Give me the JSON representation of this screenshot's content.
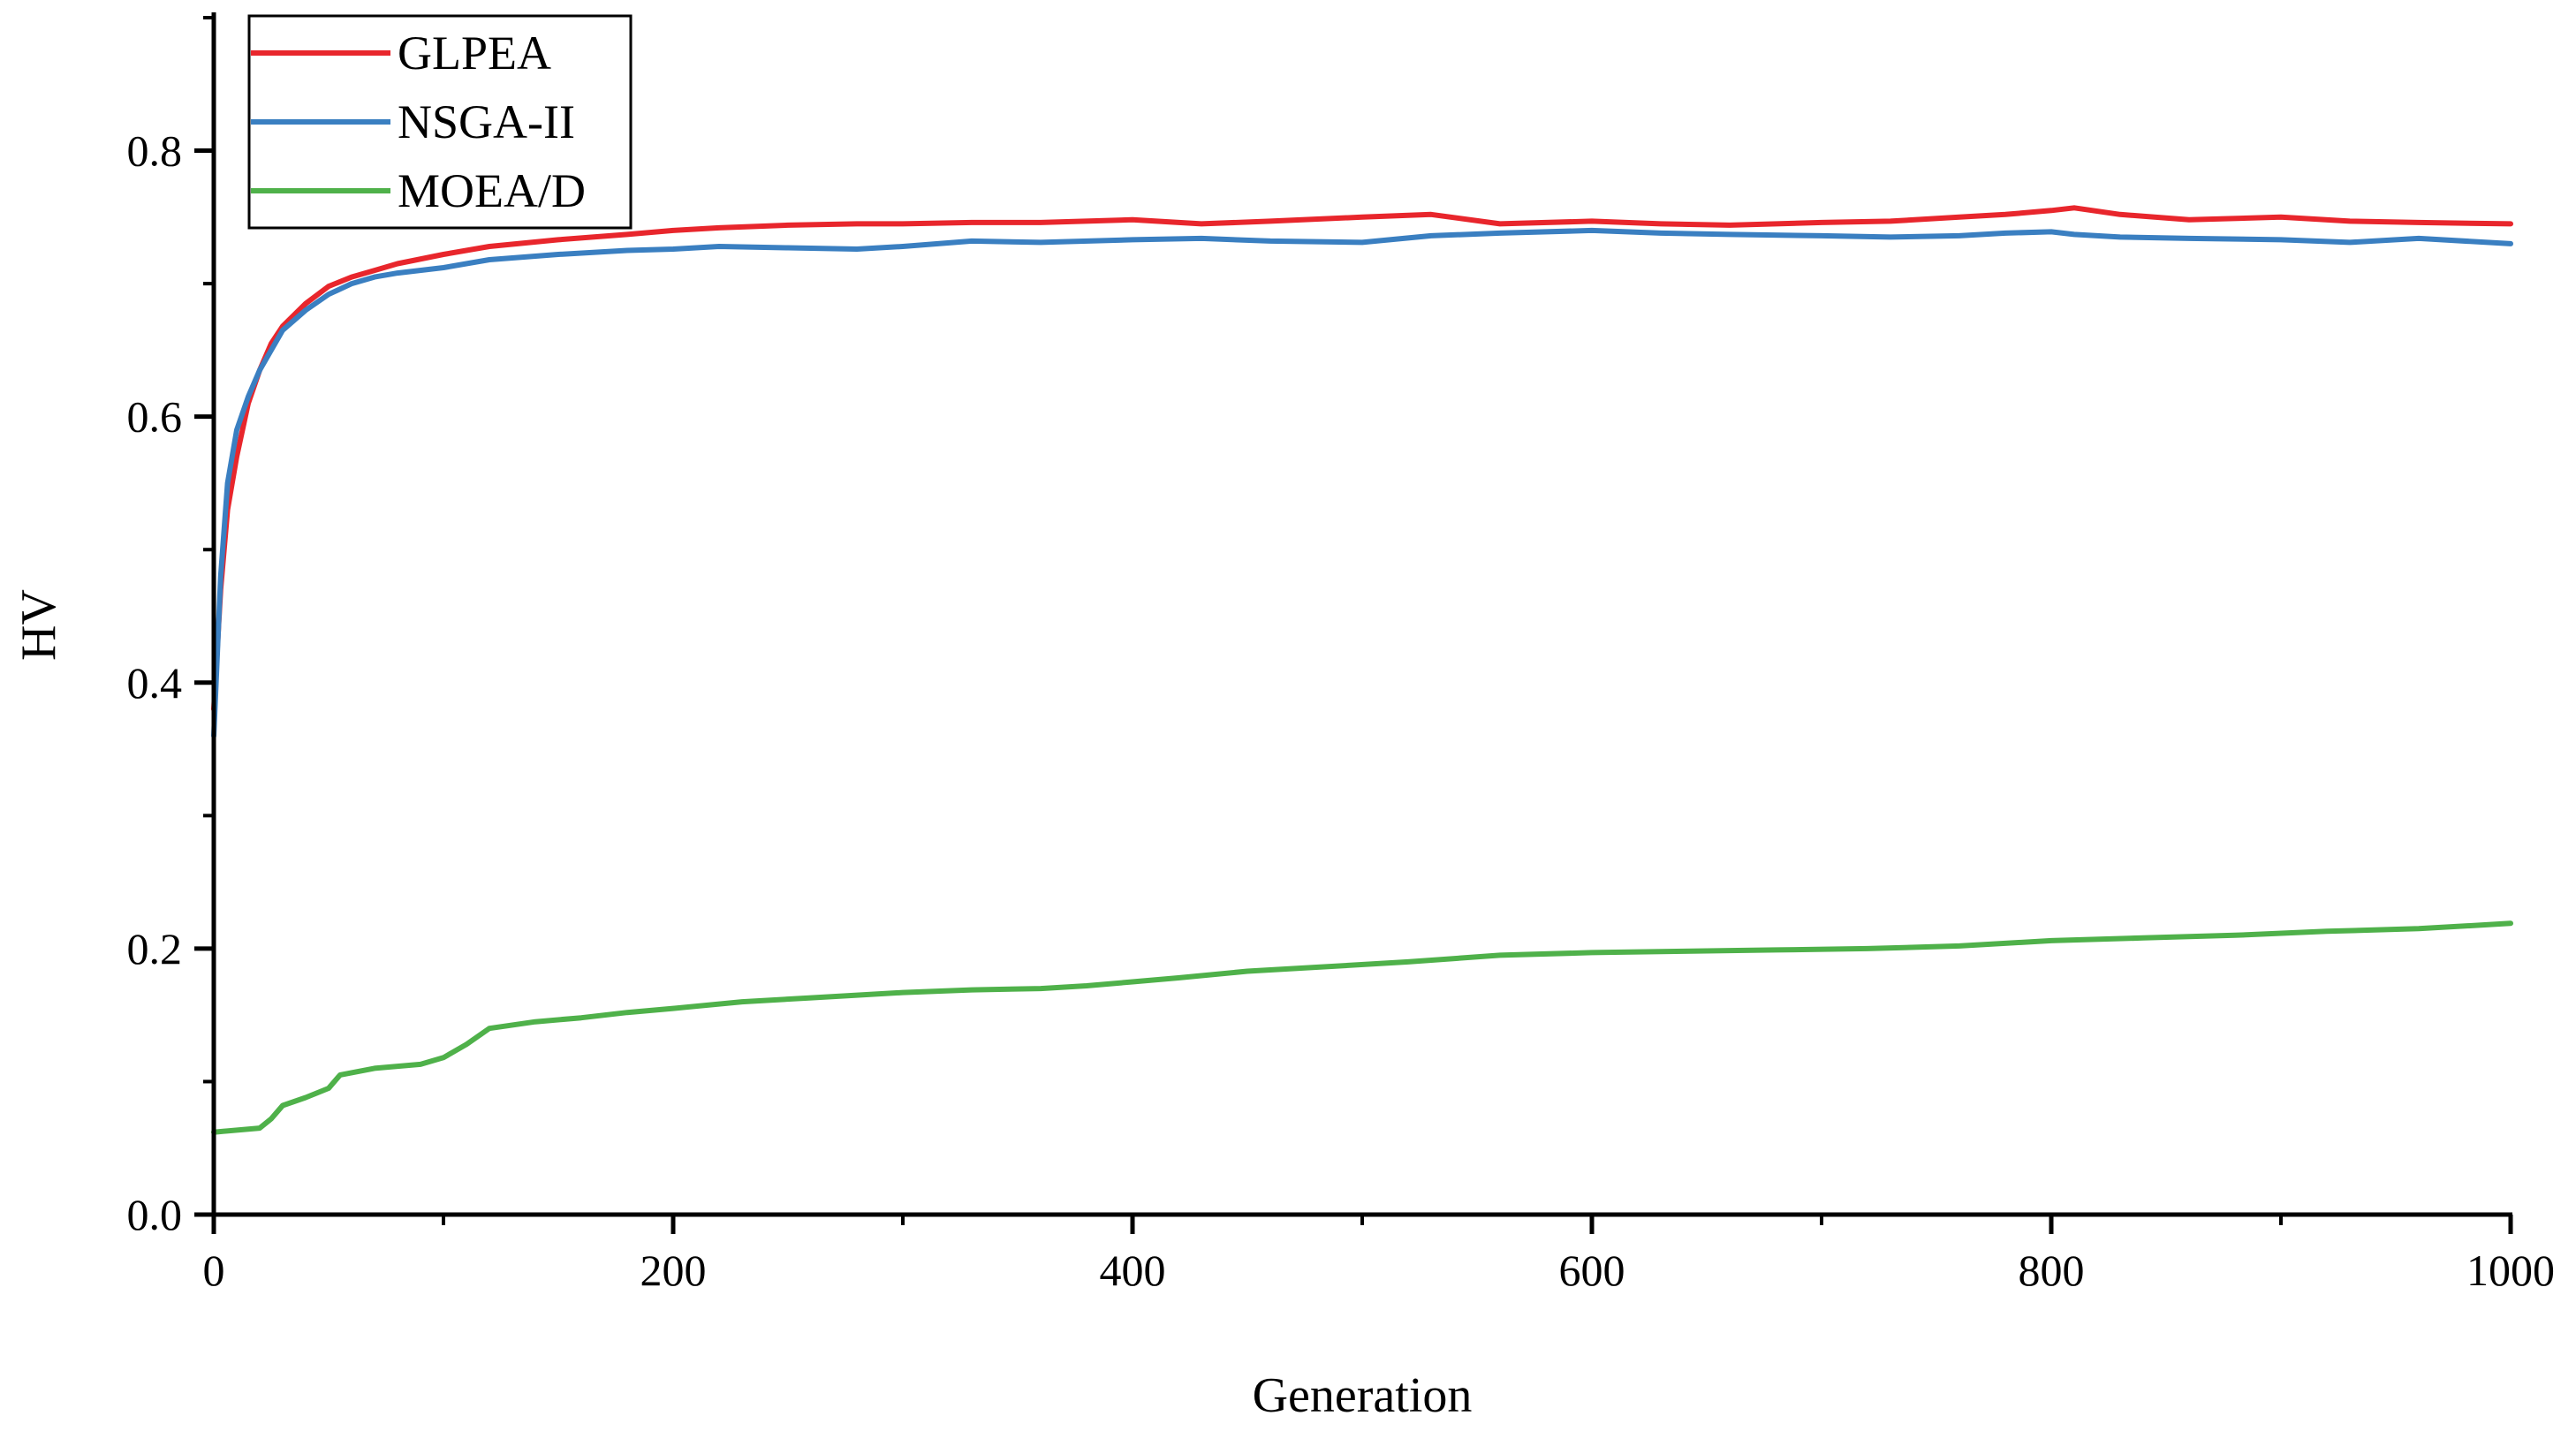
{
  "chart_data": {
    "type": "line",
    "title": "",
    "xlabel": "Generation",
    "ylabel": "HV",
    "xlim": [
      0,
      1000
    ],
    "ylim": [
      0,
      0.9
    ],
    "xticks": [
      0,
      200,
      400,
      600,
      800,
      1000
    ],
    "xtick_labels": [
      "0",
      "200",
      "400",
      "600",
      "800",
      "1000"
    ],
    "yticks": [
      0.0,
      0.2,
      0.4,
      0.6,
      0.8
    ],
    "ytick_labels": [
      "0.0",
      "0.2",
      "0.4",
      "0.6",
      "0.8"
    ],
    "grid": false,
    "legend_position": "top-left",
    "series": [
      {
        "name": "GLPEA",
        "color": "#e8262c",
        "x": [
          0,
          3,
          6,
          10,
          15,
          20,
          25,
          30,
          40,
          50,
          60,
          70,
          80,
          100,
          120,
          150,
          180,
          200,
          220,
          250,
          280,
          300,
          330,
          360,
          400,
          430,
          460,
          500,
          530,
          560,
          600,
          630,
          660,
          700,
          730,
          760,
          780,
          800,
          810,
          830,
          860,
          900,
          930,
          960,
          1000
        ],
        "y": [
          0.38,
          0.47,
          0.53,
          0.57,
          0.61,
          0.635,
          0.655,
          0.668,
          0.685,
          0.698,
          0.705,
          0.71,
          0.715,
          0.722,
          0.728,
          0.733,
          0.737,
          0.74,
          0.742,
          0.744,
          0.745,
          0.745,
          0.746,
          0.746,
          0.748,
          0.745,
          0.747,
          0.75,
          0.752,
          0.745,
          0.747,
          0.745,
          0.744,
          0.746,
          0.747,
          0.75,
          0.752,
          0.755,
          0.757,
          0.752,
          0.748,
          0.75,
          0.747,
          0.746,
          0.745
        ]
      },
      {
        "name": "NSGA-II",
        "color": "#3a7fc1",
        "x": [
          0,
          3,
          6,
          10,
          15,
          20,
          25,
          30,
          40,
          50,
          60,
          70,
          80,
          100,
          120,
          150,
          180,
          200,
          220,
          250,
          280,
          300,
          330,
          360,
          400,
          430,
          460,
          500,
          530,
          560,
          600,
          630,
          660,
          700,
          730,
          760,
          780,
          800,
          810,
          830,
          860,
          900,
          930,
          960,
          1000
        ],
        "y": [
          0.36,
          0.48,
          0.55,
          0.59,
          0.615,
          0.635,
          0.65,
          0.665,
          0.68,
          0.692,
          0.7,
          0.705,
          0.708,
          0.712,
          0.718,
          0.722,
          0.725,
          0.726,
          0.728,
          0.727,
          0.726,
          0.728,
          0.732,
          0.731,
          0.733,
          0.734,
          0.732,
          0.731,
          0.736,
          0.738,
          0.74,
          0.738,
          0.737,
          0.736,
          0.735,
          0.736,
          0.738,
          0.739,
          0.737,
          0.735,
          0.734,
          0.733,
          0.731,
          0.734,
          0.73
        ]
      },
      {
        "name": "MOEA/D",
        "color": "#4fb14a",
        "x": [
          0,
          20,
          25,
          30,
          40,
          50,
          55,
          70,
          90,
          100,
          110,
          120,
          140,
          160,
          180,
          200,
          230,
          260,
          280,
          300,
          330,
          360,
          380,
          400,
          420,
          450,
          480,
          520,
          560,
          600,
          640,
          680,
          720,
          760,
          800,
          840,
          880,
          920,
          960,
          1000
        ],
        "y": [
          0.062,
          0.065,
          0.072,
          0.082,
          0.088,
          0.095,
          0.105,
          0.11,
          0.113,
          0.118,
          0.128,
          0.14,
          0.145,
          0.148,
          0.152,
          0.155,
          0.16,
          0.163,
          0.165,
          0.167,
          0.169,
          0.17,
          0.172,
          0.175,
          0.178,
          0.183,
          0.186,
          0.19,
          0.195,
          0.197,
          0.198,
          0.199,
          0.2,
          0.202,
          0.206,
          0.208,
          0.21,
          0.213,
          0.215,
          0.219
        ]
      }
    ]
  }
}
